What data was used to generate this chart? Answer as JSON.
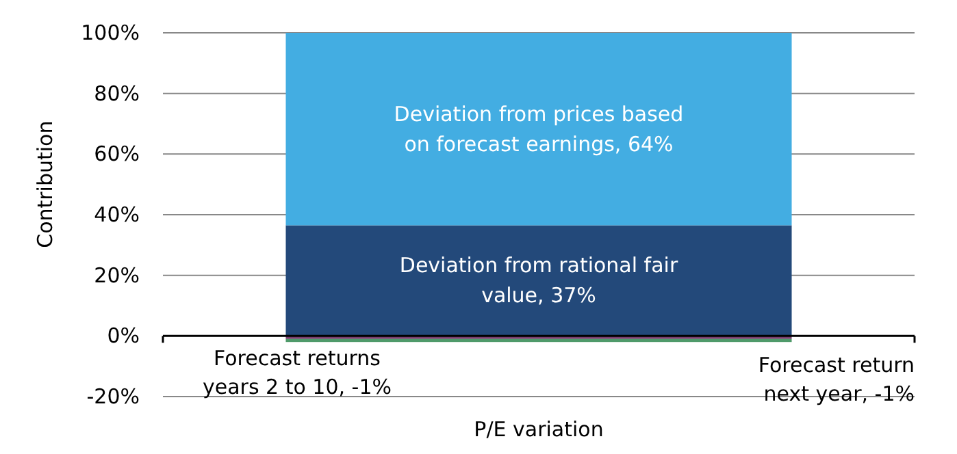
{
  "chart_data": {
    "type": "bar",
    "stacked": true,
    "xlabel": "P/E variation",
    "ylabel": "Contribution",
    "categories": [
      null
    ],
    "series": [
      {
        "name": "Deviation from rational fair value, 37%",
        "color": "#23497a",
        "values": [
          36.5
        ]
      },
      {
        "name": "Deviation from prices based on forecast earnings, 64%",
        "color": "#43ade2",
        "values": [
          63.5
        ]
      },
      {
        "name": "Forecast returns years 2 to 10, -1%",
        "color": "#7a3d6e",
        "values": [
          -1
        ]
      },
      {
        "name": "Forecast return next year, -1%",
        "color": "#4f9a6a",
        "values": [
          -1
        ]
      }
    ],
    "ylim": [
      -20,
      100
    ],
    "yticks": [
      {
        "value": -20,
        "label": "-20%"
      },
      {
        "value": 0,
        "label": "0%"
      },
      {
        "value": 20,
        "label": "20%"
      },
      {
        "value": 40,
        "label": "40%"
      },
      {
        "value": 60,
        "label": "60%"
      },
      {
        "value": 80,
        "label": "80%"
      },
      {
        "value": 100,
        "label": "100%"
      }
    ],
    "grid": "y"
  }
}
